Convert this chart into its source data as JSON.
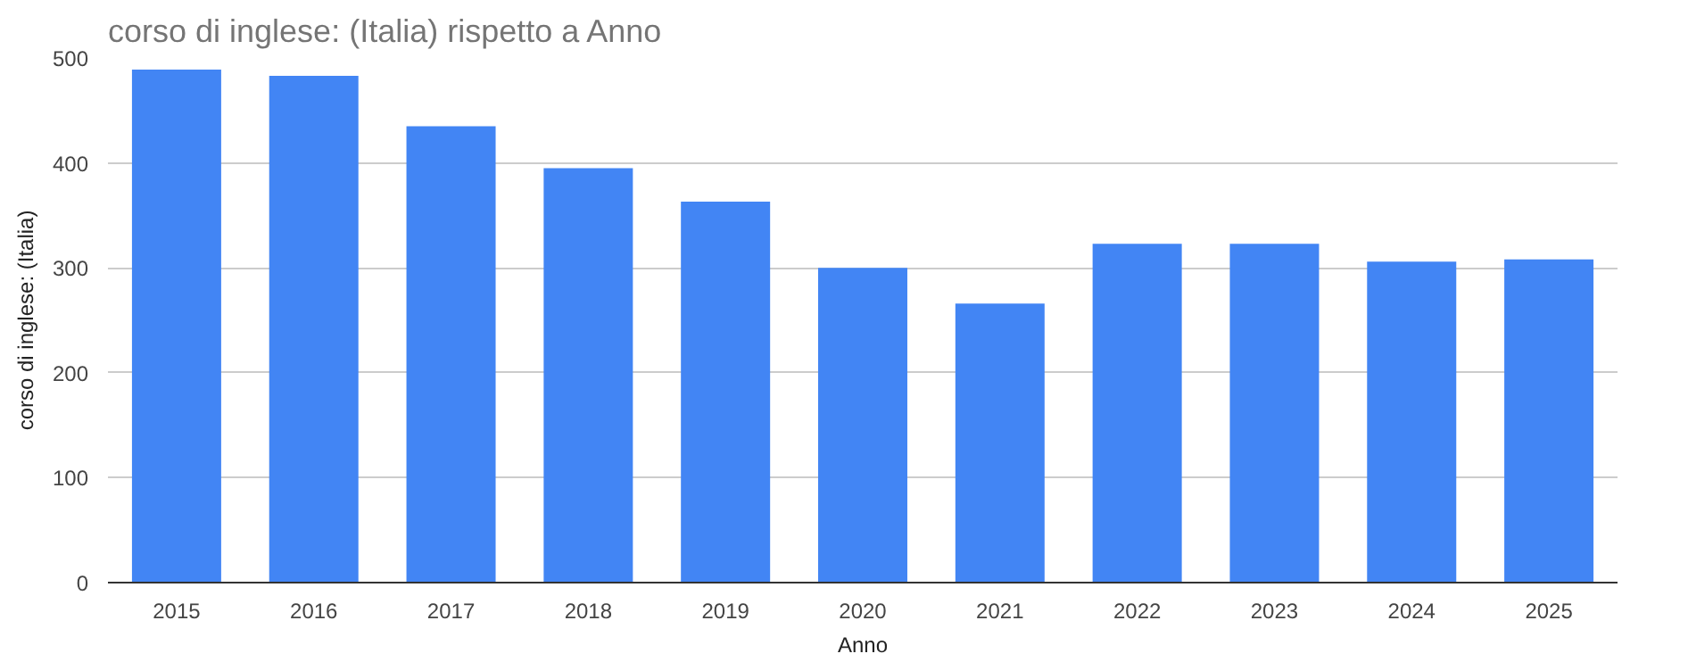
{
  "chart_data": {
    "type": "bar",
    "title": "corso di inglese: (Italia) rispetto a Anno",
    "xlabel": "Anno",
    "ylabel": "corso di inglese: (Italia)",
    "categories": [
      "2015",
      "2016",
      "2017",
      "2018",
      "2019",
      "2020",
      "2021",
      "2022",
      "2023",
      "2024",
      "2025"
    ],
    "values": [
      489,
      483,
      435,
      395,
      363,
      300,
      266,
      323,
      323,
      306,
      308
    ],
    "color": "#4285f4",
    "ylim": [
      0,
      500
    ],
    "yticks": [
      0,
      100,
      200,
      300,
      400,
      500
    ],
    "grid": "y"
  }
}
